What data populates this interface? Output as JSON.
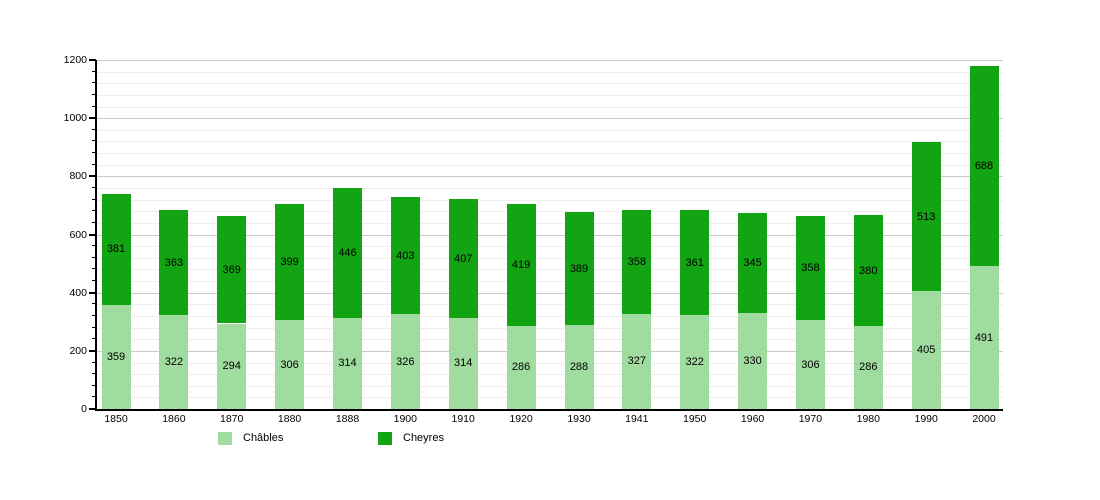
{
  "chart_data": {
    "type": "bar",
    "stacked": true,
    "title": "",
    "categories": [
      "1850",
      "1860",
      "1870",
      "1880",
      "1888",
      "1900",
      "1910",
      "1920",
      "1930",
      "1941",
      "1950",
      "1960",
      "1970",
      "1980",
      "1990",
      "2000"
    ],
    "series": [
      {
        "name": "Châbles",
        "color": "#a0dca0",
        "values": [
          359,
          322,
          294,
          306,
          314,
          326,
          314,
          286,
          288,
          327,
          322,
          330,
          306,
          286,
          405,
          491
        ]
      },
      {
        "name": "Cheyres",
        "color": "#12a412",
        "values": [
          381,
          363,
          369,
          399,
          446,
          403,
          407,
          419,
          389,
          358,
          361,
          345,
          358,
          380,
          513,
          688
        ]
      }
    ],
    "xlabel": "",
    "ylabel": "",
    "ylim": [
      0,
      1200
    ],
    "y_major_step": 200,
    "y_minor_step": 40,
    "y_tick_labels": [
      "0",
      "200",
      "400",
      "600",
      "800",
      "1000",
      "1200"
    ],
    "grid": "horizontal",
    "legend_position": "bottom",
    "background_color": "#ffffff",
    "axis_color": "#000000"
  }
}
